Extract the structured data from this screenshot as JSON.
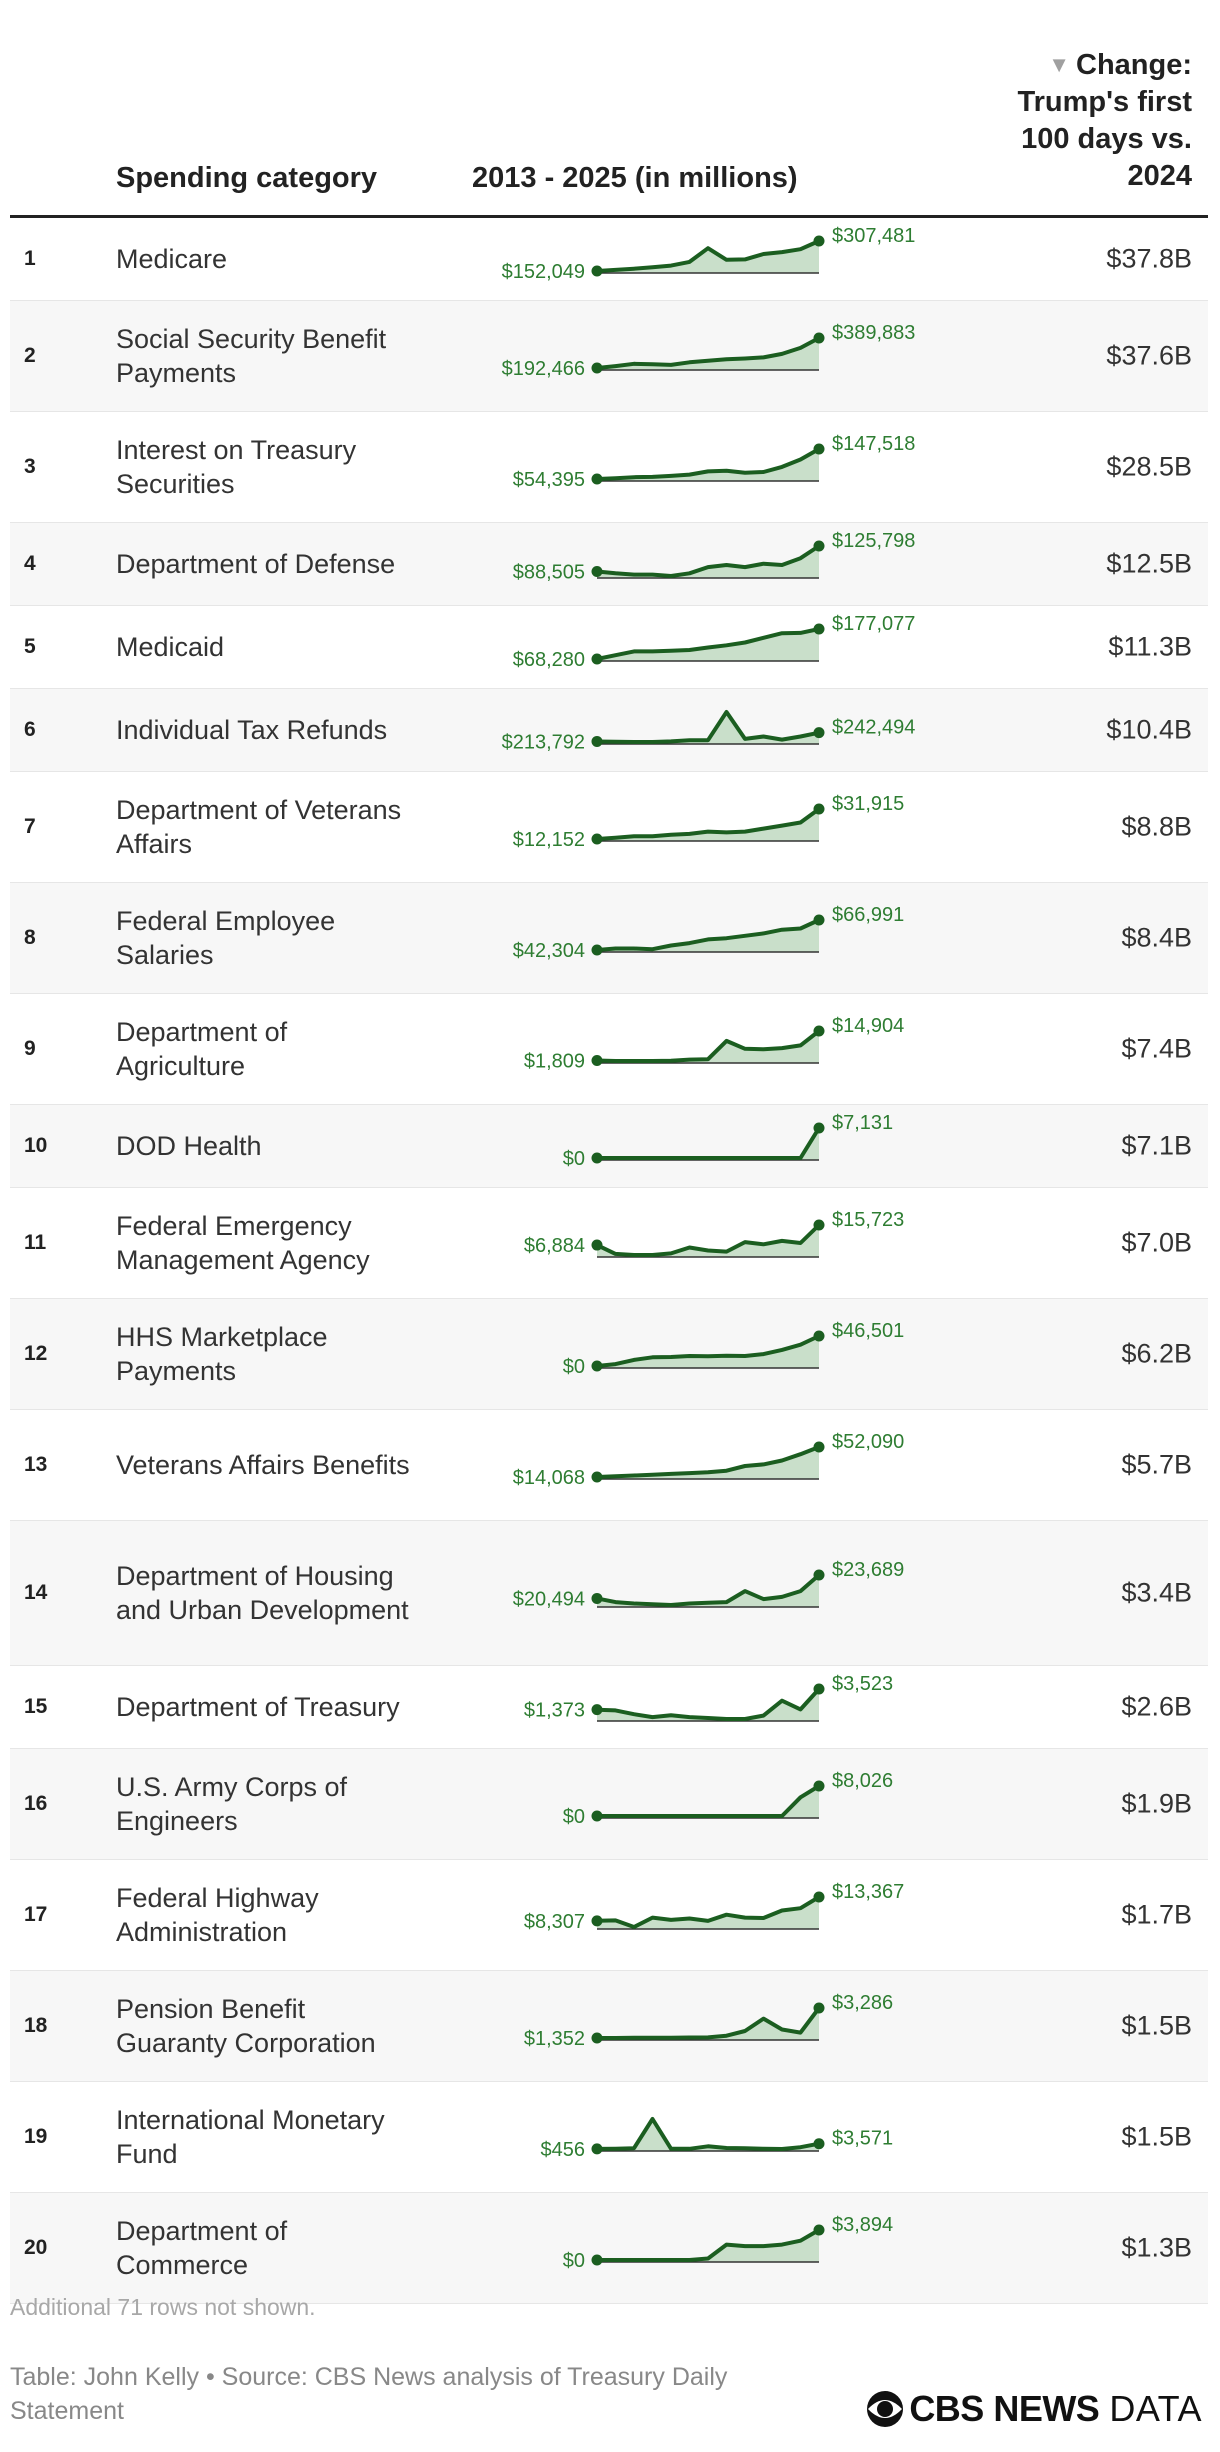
{
  "header": {
    "category": "Spending category",
    "range": "2013 - 2025 (in millions)",
    "change": "Change: Trump's first 100 days vs. 2024"
  },
  "colors": {
    "line": "#1b5e20",
    "fill": "#c9dfca",
    "label": "#2e7d32"
  },
  "chart_data": {
    "type": "table",
    "columns": [
      "",
      "Spending category",
      "2013 - 2025 (in millions)",
      "Change: Trump's first 100 days vs. 2024"
    ],
    "rows": [
      {
        "rank": "1",
        "name": "Medicare",
        "start": "$152,049",
        "end": "$307,481",
        "change": "$37.8B",
        "trend": [
          152049,
          158000,
          164000,
          171000,
          180000,
          199000,
          270000,
          210000,
          212000,
          240000,
          250000,
          265000,
          307481
        ]
      },
      {
        "rank": "2",
        "name": "Social Security Benefit Payments",
        "start": "$192,466",
        "end": "$389,883",
        "change": "$37.6B",
        "trend": [
          192466,
          205000,
          220000,
          217000,
          213000,
          230000,
          240000,
          250000,
          255000,
          262000,
          285000,
          325000,
          389883
        ]
      },
      {
        "rank": "3",
        "name": "Interest on Treasury Securities",
        "start": "$54,395",
        "end": "$147,518",
        "change": "$28.5B",
        "trend": [
          54395,
          57000,
          60000,
          61000,
          64000,
          68000,
          78000,
          80000,
          74000,
          76000,
          92000,
          115000,
          147518
        ]
      },
      {
        "rank": "4",
        "name": "Department of Defense",
        "start": "$88,505",
        "end": "$125,798",
        "change": "$12.5B",
        "trend": [
          88505,
          86000,
          84000,
          84000,
          82000,
          86000,
          95000,
          98000,
          95000,
          100000,
          98000,
          108000,
          125798
        ]
      },
      {
        "rank": "5",
        "name": "Medicaid",
        "start": "$68,280",
        "end": "$177,077",
        "change": "$11.3B",
        "trend": [
          68280,
          82000,
          96000,
          96000,
          98000,
          101000,
          110000,
          118000,
          128000,
          145000,
          162000,
          163000,
          177077
        ]
      },
      {
        "rank": "6",
        "name": "Individual Tax Refunds",
        "start": "$213,792",
        "end": "$242,494",
        "change": "$10.4B",
        "trend": [
          213792,
          213000,
          212000,
          212000,
          214000,
          218000,
          218000,
          310000,
          222000,
          230000,
          220000,
          230000,
          242494
        ]
      },
      {
        "rank": "7",
        "name": "Department of Veterans Affairs",
        "start": "$12,152",
        "end": "$31,915",
        "change": "$8.8B",
        "trend": [
          12152,
          13000,
          14000,
          14000,
          15000,
          15500,
          17000,
          16500,
          17000,
          19000,
          21000,
          23000,
          31915
        ]
      },
      {
        "rank": "8",
        "name": "Federal Employee Salaries",
        "start": "$42,304",
        "end": "$66,991",
        "change": "$8.4B",
        "trend": [
          42304,
          43500,
          43500,
          43000,
          46000,
          48000,
          51000,
          52000,
          54000,
          56000,
          59000,
          60000,
          66991
        ]
      },
      {
        "rank": "9",
        "name": "Department of Agriculture",
        "start": "$1,809",
        "end": "$14,904",
        "change": "$7.4B",
        "trend": [
          1809,
          1600,
          1600,
          1600,
          1700,
          2200,
          2400,
          10500,
          7000,
          6800,
          7300,
          8500,
          14904
        ]
      },
      {
        "rank": "10",
        "name": "DOD Health",
        "start": "$0",
        "end": "$7,131",
        "change": "$7.1B",
        "trend": [
          0,
          0,
          0,
          0,
          0,
          0,
          0,
          0,
          0,
          0,
          0,
          0,
          7131
        ]
      },
      {
        "rank": "11",
        "name": "Federal Emergency Management Agency",
        "start": "$6,884",
        "end": "$15,723",
        "change": "$7.0B",
        "trend": [
          6884,
          3000,
          2500,
          2500,
          3200,
          5800,
          4500,
          4000,
          8200,
          7200,
          8700,
          7800,
          15723
        ]
      },
      {
        "rank": "12",
        "name": "HHS Marketplace Payments",
        "start": "$0",
        "end": "$46,501",
        "change": "$6.2B",
        "trend": [
          0,
          3000,
          9500,
          13500,
          14000,
          15500,
          15000,
          16000,
          15500,
          18500,
          25000,
          33000,
          46501
        ]
      },
      {
        "rank": "13",
        "name": "Veterans Affairs Benefits",
        "start": "$14,068",
        "end": "$52,090",
        "change": "$5.7B",
        "trend": [
          14068,
          15000,
          16000,
          17000,
          18000,
          19000,
          20000,
          22000,
          28000,
          30000,
          35000,
          43000,
          52090
        ]
      },
      {
        "rank": "14",
        "name": "Department of Housing and Urban Development",
        "start": "$20,494",
        "end": "$23,689",
        "change": "$3.4B",
        "trend": [
          20494,
          20000,
          19800,
          19700,
          19600,
          19800,
          19900,
          20000,
          21500,
          20400,
          20700,
          21500,
          23689
        ]
      },
      {
        "rank": "15",
        "name": "Department of Treasury",
        "start": "$1,373",
        "end": "$3,523",
        "change": "$2.6B",
        "trend": [
          1373,
          1300,
          900,
          600,
          800,
          600,
          500,
          400,
          400,
          750,
          2300,
          1400,
          3523
        ]
      },
      {
        "rank": "16",
        "name": "U.S. Army Corps of Engineers",
        "start": "$0",
        "end": "$8,026",
        "change": "$1.9B",
        "trend": [
          0,
          0,
          0,
          0,
          0,
          0,
          0,
          0,
          0,
          0,
          0,
          5000,
          8026
        ]
      },
      {
        "rank": "17",
        "name": "Federal Highway Administration",
        "start": "$8,307",
        "end": "$13,367",
        "change": "$1.7B",
        "trend": [
          8307,
          8400,
          7000,
          9000,
          8500,
          8800,
          8300,
          9600,
          9000,
          8900,
          10500,
          11000,
          13367
        ]
      },
      {
        "rank": "18",
        "name": "Pension Benefit Guaranty Corporation",
        "start": "$1,352",
        "end": "$3,286",
        "change": "$1.5B",
        "trend": [
          1352,
          1350,
          1360,
          1370,
          1360,
          1380,
          1390,
          1500,
          1800,
          2600,
          1900,
          1700,
          3286
        ]
      },
      {
        "rank": "19",
        "name": "International Monetary Fund",
        "start": "$456",
        "end": "$3,571",
        "change": "$1.5B",
        "trend": [
          456,
          600,
          900,
          18500,
          600,
          500,
          2000,
          1000,
          800,
          500,
          400,
          1500,
          3571
        ]
      },
      {
        "rank": "20",
        "name": "Department of Commerce",
        "start": "$0",
        "end": "$3,894",
        "change": "$1.3B",
        "trend": [
          0,
          0,
          0,
          0,
          0,
          0,
          200,
          2000,
          1800,
          1800,
          2000,
          2500,
          3894
        ]
      }
    ]
  },
  "note": "Additional 71 rows not shown.",
  "footer": "Table: John Kelly • Source: CBS News analysis of Treasury Daily Statement",
  "logo": {
    "brand": "CBS NEWS",
    "suffix": "DATA"
  }
}
